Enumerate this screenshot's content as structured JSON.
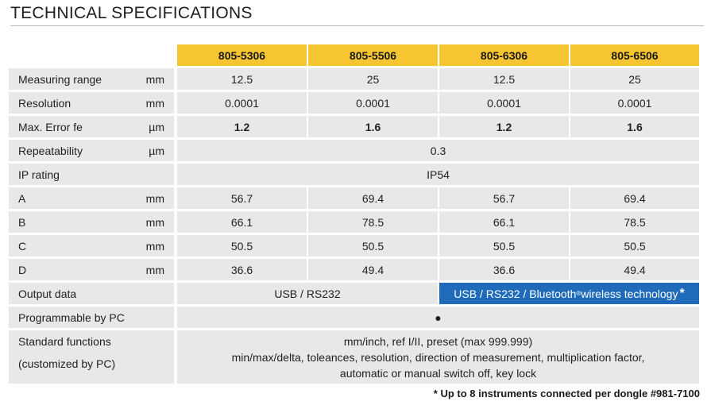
{
  "title": "TECHNICAL SPECIFICATIONS",
  "columns": [
    "805-5306",
    "805-5506",
    "805-6306",
    "805-6506"
  ],
  "rows": {
    "measuring_range": {
      "label": "Measuring range",
      "unit": "mm",
      "values": [
        "12.5",
        "25",
        "12.5",
        "25"
      ]
    },
    "resolution": {
      "label": "Resolution",
      "unit": "mm",
      "values": [
        "0.0001",
        "0.0001",
        "0.0001",
        "0.0001"
      ]
    },
    "max_error": {
      "label": "Max. Error fe",
      "unit": "µm",
      "values": [
        "1.2",
        "1.6",
        "1.2",
        "1.6"
      ]
    },
    "repeatability": {
      "label": "Repeatability",
      "unit": "µm",
      "value": "0.3"
    },
    "ip_rating": {
      "label": "IP rating",
      "unit": "",
      "value": "IP54"
    },
    "a": {
      "label": "A",
      "unit": "mm",
      "values": [
        "56.7",
        "69.4",
        "56.7",
        "69.4"
      ]
    },
    "b": {
      "label": "B",
      "unit": "mm",
      "values": [
        "66.1",
        "78.5",
        "66.1",
        "78.5"
      ]
    },
    "c": {
      "label": "C",
      "unit": "mm",
      "values": [
        "50.5",
        "50.5",
        "50.5",
        "50.5"
      ]
    },
    "d": {
      "label": "D",
      "unit": "mm",
      "values": [
        "36.6",
        "49.4",
        "36.6",
        "49.4"
      ]
    },
    "output_data": {
      "label": "Output data",
      "left_value": "USB / RS232",
      "right_value_pre": "USB / RS232 / Bluetooth",
      "right_value_reg": "®",
      "right_value_post": " wireless technology",
      "right_value_star": "*"
    },
    "programmable": {
      "label": "Programmable by PC",
      "value": "●"
    },
    "standard_functions": {
      "label_line1": "Standard functions",
      "label_line2": "(customized by PC)",
      "line1": "mm/inch, ref I/II, preset (max 999.999)",
      "line2": "min/max/delta, toleances, resolution, direction of measurement, multiplication factor,",
      "line3": "automatic or manual switch off, key lock"
    }
  },
  "footnote": "* Up to 8 instruments connected per dongle #981-7100",
  "colors": {
    "header": "#f7c531",
    "cell": "#e8e8e8",
    "highlight": "#1f6bb9"
  }
}
